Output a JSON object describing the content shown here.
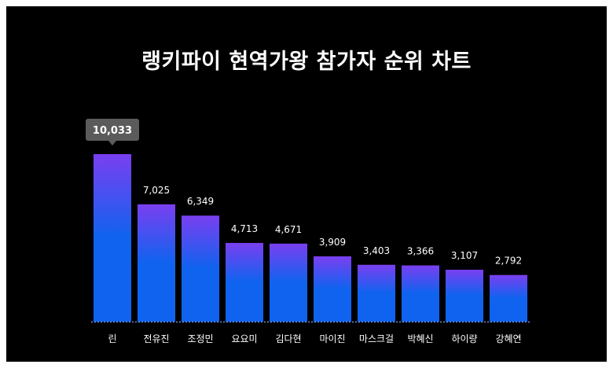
{
  "title": "랭키파이 현역가왕 참가자 순위 차트",
  "colors": {
    "background": "#000000",
    "bar_top": "#7a3ff0",
    "bar_bottom": "#0f63ef",
    "baseline": "#6f8fd8",
    "tooltip": "#5b5b5b",
    "text": "#ffffff"
  },
  "chart_data": {
    "type": "bar",
    "categories": [
      "린",
      "전유진",
      "조정민",
      "요요미",
      "김다현",
      "마이진",
      "마스크걸",
      "박혜신",
      "하이량",
      "강혜연"
    ],
    "values": [
      10033,
      7025,
      6349,
      4713,
      4671,
      3909,
      3403,
      3366,
      3107,
      2792
    ],
    "value_labels": [
      "10,033",
      "7,025",
      "6,349",
      "4,713",
      "4,671",
      "3,909",
      "3,403",
      "3,366",
      "3,107",
      "2,792"
    ],
    "highlighted_index": 0,
    "ylim": [
      0,
      10033
    ],
    "grid": false,
    "legend": "none"
  }
}
